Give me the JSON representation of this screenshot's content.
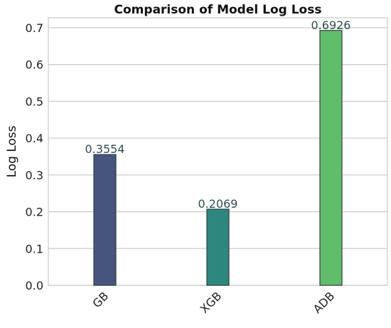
{
  "chart_data": {
    "type": "bar",
    "title": "Comparison of Model Log Loss",
    "xlabel": "",
    "ylabel": "Log Loss",
    "categories": [
      "GB",
      "XGB",
      "ADB"
    ],
    "values": [
      0.3554,
      0.2069,
      0.6926
    ],
    "data_labels": [
      "0.3554",
      "0.2069",
      "0.6926"
    ],
    "ylim": [
      0,
      0.727
    ],
    "yticks": [
      0.0,
      0.1,
      0.2,
      0.3,
      0.4,
      0.5,
      0.6,
      0.7
    ],
    "ytick_labels": [
      "0.0",
      "0.1",
      "0.2",
      "0.3",
      "0.4",
      "0.5",
      "0.6",
      "0.7"
    ],
    "grid": "horizontal",
    "legend": "none",
    "colors": [
      "#46557e",
      "#2e877e",
      "#62bd6a"
    ],
    "xtick_rotation_deg": 45
  }
}
